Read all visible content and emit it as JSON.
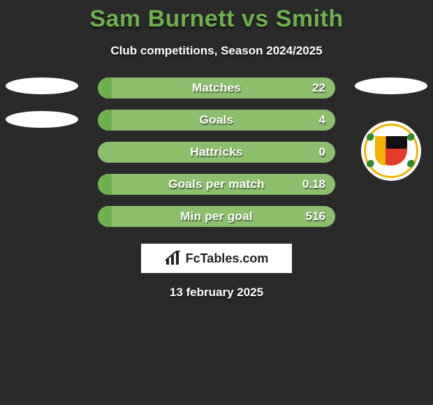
{
  "title": "Sam Burnett vs Smith",
  "subtitle": "Club competitions, Season 2024/2025",
  "date": "13 february 2025",
  "logo_text": "FcTables.com",
  "colors": {
    "accent": "#6fb04e",
    "bar_bg": "#8bbf6b",
    "page_bg": "#2a2a2a",
    "text": "#ffffff"
  },
  "left": {
    "ovals": [
      true,
      true
    ]
  },
  "right": {
    "ovals": [
      true
    ],
    "badge_name": "annan-athletic-badge"
  },
  "stats": [
    {
      "label": "Matches",
      "value": "22",
      "fill_pct": 6
    },
    {
      "label": "Goals",
      "value": "4",
      "fill_pct": 6
    },
    {
      "label": "Hattricks",
      "value": "0",
      "fill_pct": 0
    },
    {
      "label": "Goals per match",
      "value": "0.18",
      "fill_pct": 6
    },
    {
      "label": "Min per goal",
      "value": "516",
      "fill_pct": 6
    }
  ]
}
